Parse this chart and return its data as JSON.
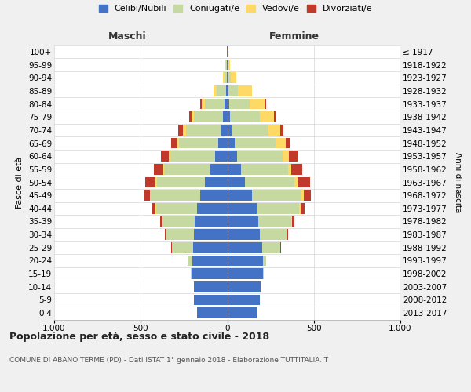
{
  "age_groups": [
    "0-4",
    "5-9",
    "10-14",
    "15-19",
    "20-24",
    "25-29",
    "30-34",
    "35-39",
    "40-44",
    "45-49",
    "50-54",
    "55-59",
    "60-64",
    "65-69",
    "70-74",
    "75-79",
    "80-84",
    "85-89",
    "90-94",
    "95-99",
    "100+"
  ],
  "birth_years": [
    "2013-2017",
    "2008-2012",
    "2003-2007",
    "1998-2002",
    "1993-1997",
    "1988-1992",
    "1983-1987",
    "1978-1982",
    "1973-1977",
    "1968-1972",
    "1963-1967",
    "1958-1962",
    "1953-1957",
    "1948-1952",
    "1943-1947",
    "1938-1942",
    "1933-1937",
    "1928-1932",
    "1923-1927",
    "1918-1922",
    "≤ 1917"
  ],
  "male_celibi": [
    175,
    192,
    192,
    208,
    203,
    198,
    192,
    186,
    176,
    157,
    128,
    98,
    70,
    50,
    35,
    25,
    15,
    8,
    4,
    2,
    1
  ],
  "male_coniugati": [
    1,
    1,
    2,
    5,
    22,
    122,
    158,
    185,
    235,
    285,
    280,
    268,
    258,
    230,
    205,
    168,
    115,
    52,
    12,
    4,
    1
  ],
  "male_vedovi": [
    0,
    0,
    0,
    0,
    1,
    1,
    1,
    1,
    2,
    3,
    5,
    5,
    8,
    10,
    15,
    15,
    18,
    18,
    8,
    4,
    1
  ],
  "male_divorziati": [
    0,
    0,
    0,
    0,
    1,
    3,
    8,
    15,
    20,
    35,
    62,
    55,
    45,
    32,
    28,
    14,
    8,
    2,
    0,
    0,
    0
  ],
  "female_celibi": [
    168,
    188,
    192,
    208,
    205,
    200,
    190,
    180,
    172,
    142,
    102,
    78,
    58,
    42,
    28,
    18,
    10,
    5,
    3,
    2,
    1
  ],
  "female_coniugati": [
    1,
    1,
    2,
    5,
    18,
    105,
    152,
    188,
    245,
    288,
    285,
    272,
    262,
    238,
    208,
    168,
    118,
    58,
    18,
    4,
    1
  ],
  "female_vedovi": [
    0,
    0,
    0,
    0,
    1,
    2,
    2,
    4,
    8,
    10,
    18,
    20,
    38,
    58,
    72,
    82,
    88,
    78,
    32,
    12,
    3
  ],
  "female_divorziati": [
    0,
    0,
    0,
    0,
    1,
    2,
    8,
    15,
    22,
    45,
    72,
    62,
    48,
    22,
    18,
    12,
    8,
    2,
    0,
    0,
    0
  ],
  "colors": {
    "celibi": "#4472c4",
    "coniugati": "#c5d9a0",
    "vedovi": "#ffd966",
    "divorziati": "#c0392b"
  },
  "legend_labels": [
    "Celibi/Nubili",
    "Coniugati/e",
    "Vedovi/e",
    "Divorziati/e"
  ],
  "xlim": 1000,
  "title": "Popolazione per età, sesso e stato civile - 2018",
  "subtitle": "COMUNE DI ABANO TERME (PD) - Dati ISTAT 1° gennaio 2018 - Elaborazione TUTTITALIA.IT",
  "xlabel_left": "Maschi",
  "xlabel_right": "Femmine",
  "ylabel": "Fasce di età",
  "ylabel_right": "Anni di nascita",
  "bg_color": "#f0f0f0",
  "plot_bg_color": "#ffffff"
}
